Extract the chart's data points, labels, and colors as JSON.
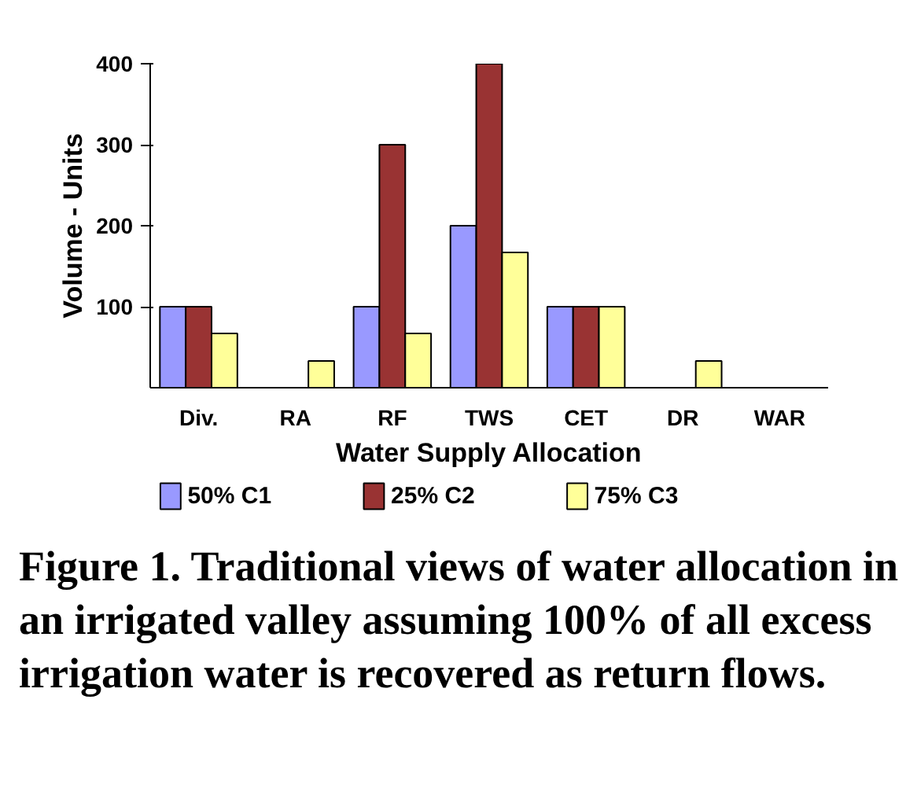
{
  "chart_data": {
    "type": "bar",
    "xlabel": "Water Supply Allocation",
    "ylabel": "Volume - Units",
    "categories": [
      "Div.",
      "RA",
      "RF",
      "TWS",
      "CET",
      "DR",
      "WAR"
    ],
    "series": [
      {
        "name": "50% C1",
        "color": "#9999ff",
        "values": [
          100,
          0,
          100,
          200,
          100,
          0,
          0
        ]
      },
      {
        "name": "25% C2",
        "color": "#993333",
        "values": [
          100,
          0,
          300,
          400,
          100,
          0,
          0
        ]
      },
      {
        "name": "75% C3",
        "color": "#ffff99",
        "values": [
          67,
          33,
          67,
          167,
          100,
          33,
          0
        ]
      }
    ],
    "ylim": [
      0,
      400
    ],
    "yticks": [
      100,
      200,
      300,
      400
    ],
    "grid": false,
    "legend": "bottom",
    "annotations": [
      "Figure 1. Traditional views of water allocation in an irrigated valley assuming 100% of all excess irrigation water is recovered as return flows."
    ]
  }
}
